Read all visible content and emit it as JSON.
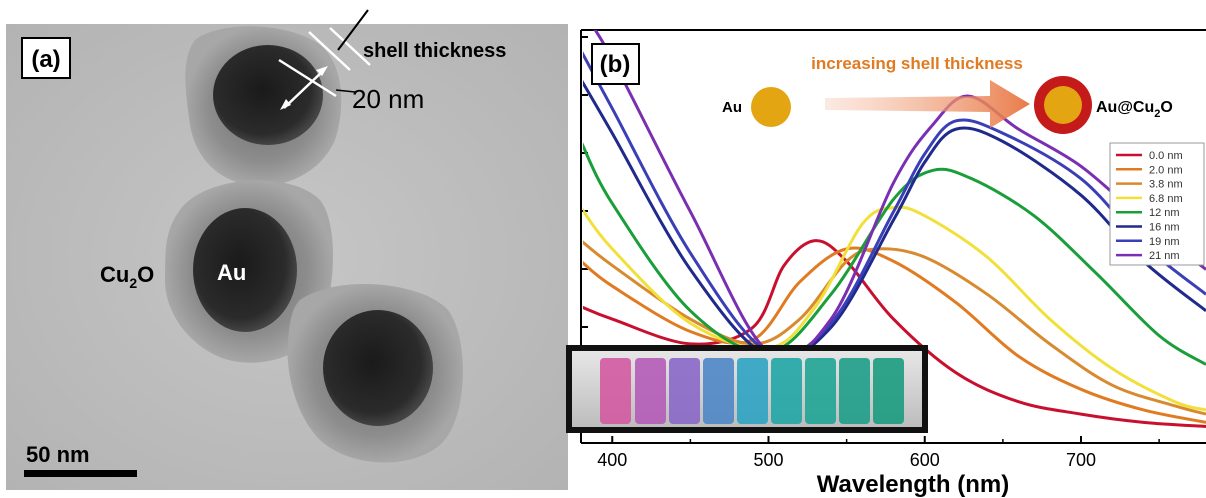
{
  "panel_a": {
    "label": "(a)",
    "shell_label": "shell thickness",
    "thickness_label": "20 nm",
    "shell_material_label": "Cu2O",
    "core_material_label": "Au",
    "scale_bar_label": "50 nm"
  },
  "panel_b": {
    "label": "(b)",
    "arrow_label": "increasing shell thickness",
    "left_particle_label": "Au",
    "right_particle_label": "Au@Cu2O",
    "core_color": "#e3a512",
    "shell_color": "#c41a1a"
  },
  "chart_data": {
    "type": "line",
    "xlabel": "Wavelength (nm)",
    "ylabel": "",
    "xlim": [
      380,
      780
    ],
    "ylim": [
      0,
      1
    ],
    "xticks": [
      400,
      500,
      600,
      700
    ],
    "legend_position": "right",
    "series": [
      {
        "name": "0.0 nm",
        "color": "#c8102e",
        "x": [
          380,
          400,
          450,
          490,
          510,
          530,
          550,
          580,
          620,
          660,
          700,
          740,
          780
        ],
        "y": [
          0.33,
          0.3,
          0.24,
          0.28,
          0.43,
          0.49,
          0.44,
          0.3,
          0.17,
          0.1,
          0.07,
          0.05,
          0.04
        ]
      },
      {
        "name": "2.0 nm",
        "color": "#e07b22",
        "x": [
          380,
          400,
          450,
          490,
          520,
          550,
          580,
          620,
          660,
          700,
          740,
          780
        ],
        "y": [
          0.44,
          0.38,
          0.27,
          0.25,
          0.39,
          0.47,
          0.44,
          0.34,
          0.21,
          0.13,
          0.08,
          0.05
        ]
      },
      {
        "name": "3.8 nm",
        "color": "#d88a2e",
        "x": [
          380,
          400,
          450,
          490,
          520,
          550,
          570,
          600,
          640,
          680,
          720,
          760,
          780
        ],
        "y": [
          0.49,
          0.43,
          0.3,
          0.24,
          0.3,
          0.44,
          0.47,
          0.45,
          0.36,
          0.24,
          0.14,
          0.09,
          0.07
        ]
      },
      {
        "name": "6.8 nm",
        "color": "#f2e03a",
        "x": [
          380,
          400,
          450,
          500,
          530,
          560,
          580,
          600,
          640,
          680,
          720,
          760,
          780
        ],
        "y": [
          0.57,
          0.47,
          0.29,
          0.23,
          0.33,
          0.53,
          0.57,
          0.55,
          0.45,
          0.3,
          0.18,
          0.1,
          0.08
        ]
      },
      {
        "name": "12 nm",
        "color": "#1a9e3a",
        "x": [
          380,
          400,
          450,
          500,
          540,
          580,
          605,
          630,
          670,
          710,
          750,
          780
        ],
        "y": [
          0.73,
          0.58,
          0.32,
          0.22,
          0.36,
          0.59,
          0.66,
          0.64,
          0.55,
          0.41,
          0.26,
          0.19
        ]
      },
      {
        "name": "16 nm",
        "color": "#1f2a8c",
        "x": [
          380,
          400,
          450,
          500,
          540,
          580,
          600,
          620,
          650,
          700,
          740,
          780
        ],
        "y": [
          0.88,
          0.75,
          0.42,
          0.21,
          0.28,
          0.54,
          0.68,
          0.76,
          0.73,
          0.6,
          0.44,
          0.32
        ]
      },
      {
        "name": "19 nm",
        "color": "#3a3fb8",
        "x": [
          380,
          400,
          450,
          500,
          540,
          580,
          600,
          620,
          650,
          700,
          740,
          780
        ],
        "y": [
          0.95,
          0.81,
          0.46,
          0.22,
          0.29,
          0.56,
          0.7,
          0.78,
          0.75,
          0.64,
          0.48,
          0.36
        ]
      },
      {
        "name": "21 nm",
        "color": "#7a2fb3",
        "x": [
          380,
          400,
          450,
          500,
          540,
          580,
          605,
          628,
          660,
          700,
          740,
          780
        ],
        "y": [
          1.05,
          0.93,
          0.56,
          0.22,
          0.3,
          0.63,
          0.77,
          0.84,
          0.76,
          0.67,
          0.54,
          0.42
        ]
      }
    ]
  }
}
